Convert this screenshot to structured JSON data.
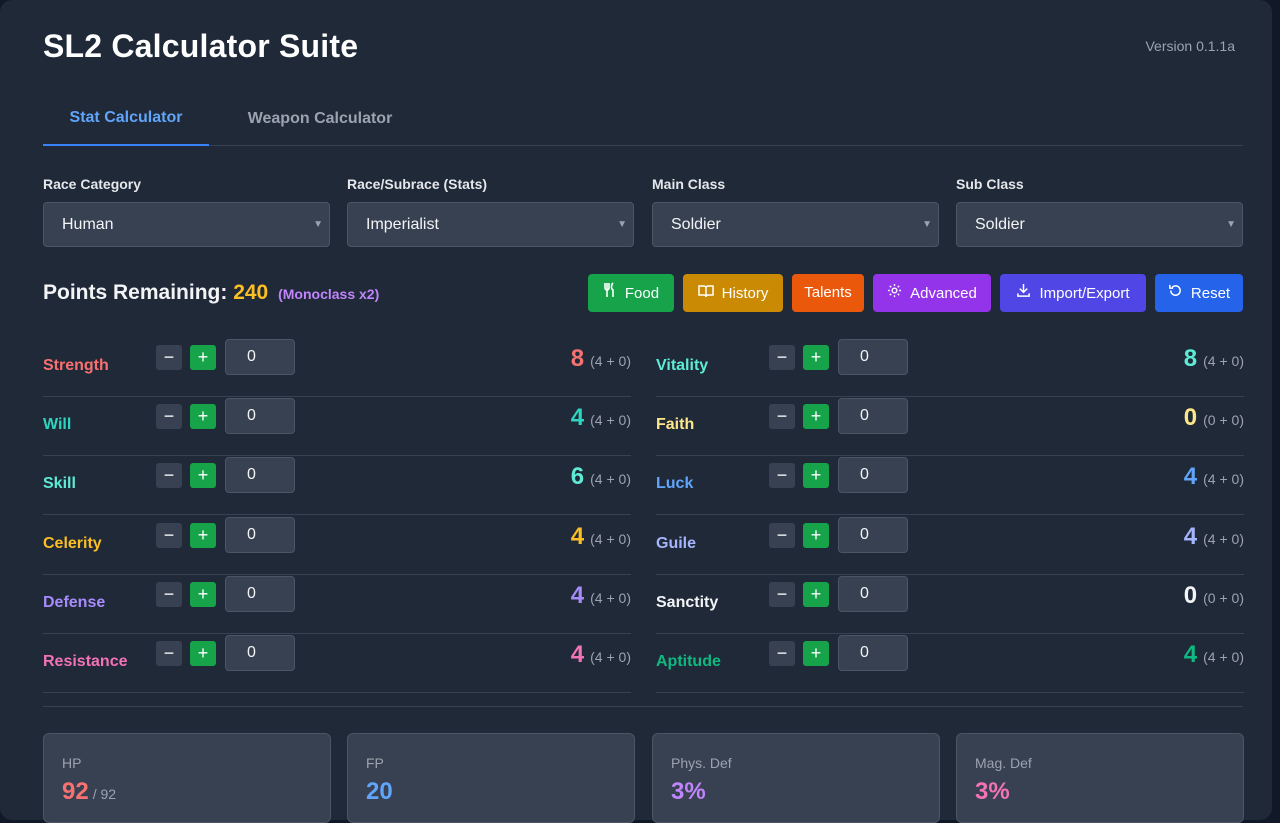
{
  "app": {
    "title": "SL2 Calculator Suite",
    "version": "Version 0.1.1a"
  },
  "tabs": [
    {
      "label": "Stat Calculator",
      "active": true
    },
    {
      "label": "Weapon Calculator",
      "active": false
    }
  ],
  "selects": [
    {
      "label": "Race Category",
      "value": "Human"
    },
    {
      "label": "Race/Subrace (Stats)",
      "value": "Imperialist"
    },
    {
      "label": "Main Class",
      "value": "Soldier"
    },
    {
      "label": "Sub Class",
      "value": "Soldier"
    }
  ],
  "points": {
    "label": "Points Remaining:",
    "value": "240",
    "note": "(Monoclass x2)"
  },
  "buttons": {
    "food": "Food",
    "history": "History",
    "talents": "Talents",
    "advanced": "Advanced",
    "import_export": "Import/Export",
    "reset": "Reset"
  },
  "stats_left": [
    {
      "name": "Strength",
      "input": "0",
      "total": "8",
      "detail": "(4 + 0)",
      "color": "#f87171"
    },
    {
      "name": "Will",
      "input": "0",
      "total": "4",
      "detail": "(4 + 0)",
      "color": "#2dd4bf"
    },
    {
      "name": "Skill",
      "input": "0",
      "total": "6",
      "detail": "(4 + 0)",
      "color": "#5eead4"
    },
    {
      "name": "Celerity",
      "input": "0",
      "total": "4",
      "detail": "(4 + 0)",
      "color": "#fbbf24"
    },
    {
      "name": "Defense",
      "input": "0",
      "total": "4",
      "detail": "(4 + 0)",
      "color": "#a78bfa"
    },
    {
      "name": "Resistance",
      "input": "0",
      "total": "4",
      "detail": "(4 + 0)",
      "color": "#f472b6"
    }
  ],
  "stats_right": [
    {
      "name": "Vitality",
      "input": "0",
      "total": "8",
      "detail": "(4 + 0)",
      "color": "#5eead4"
    },
    {
      "name": "Faith",
      "input": "0",
      "total": "0",
      "detail": "(0 + 0)",
      "color": "#fde68a"
    },
    {
      "name": "Luck",
      "input": "0",
      "total": "4",
      "detail": "(4 + 0)",
      "color": "#60a5fa"
    },
    {
      "name": "Guile",
      "input": "0",
      "total": "4",
      "detail": "(4 + 0)",
      "color": "#a5b4fc"
    },
    {
      "name": "Sanctity",
      "input": "0",
      "total": "0",
      "detail": "(0 + 0)",
      "color": "#f3f4f6"
    },
    {
      "name": "Aptitude",
      "input": "0",
      "total": "4",
      "detail": "(4 + 0)",
      "color": "#10b981"
    }
  ],
  "cards": [
    {
      "label": "HP",
      "value": "92",
      "max": "/ 92",
      "color": "#f87171"
    },
    {
      "label": "FP",
      "value": "20",
      "max": "",
      "color": "#60a5fa"
    },
    {
      "label": "Phys. Def",
      "value": "3%",
      "max": "",
      "color": "#c084fc"
    },
    {
      "label": "Mag. Def",
      "value": "3%",
      "max": "",
      "color": "#f472b6"
    }
  ]
}
